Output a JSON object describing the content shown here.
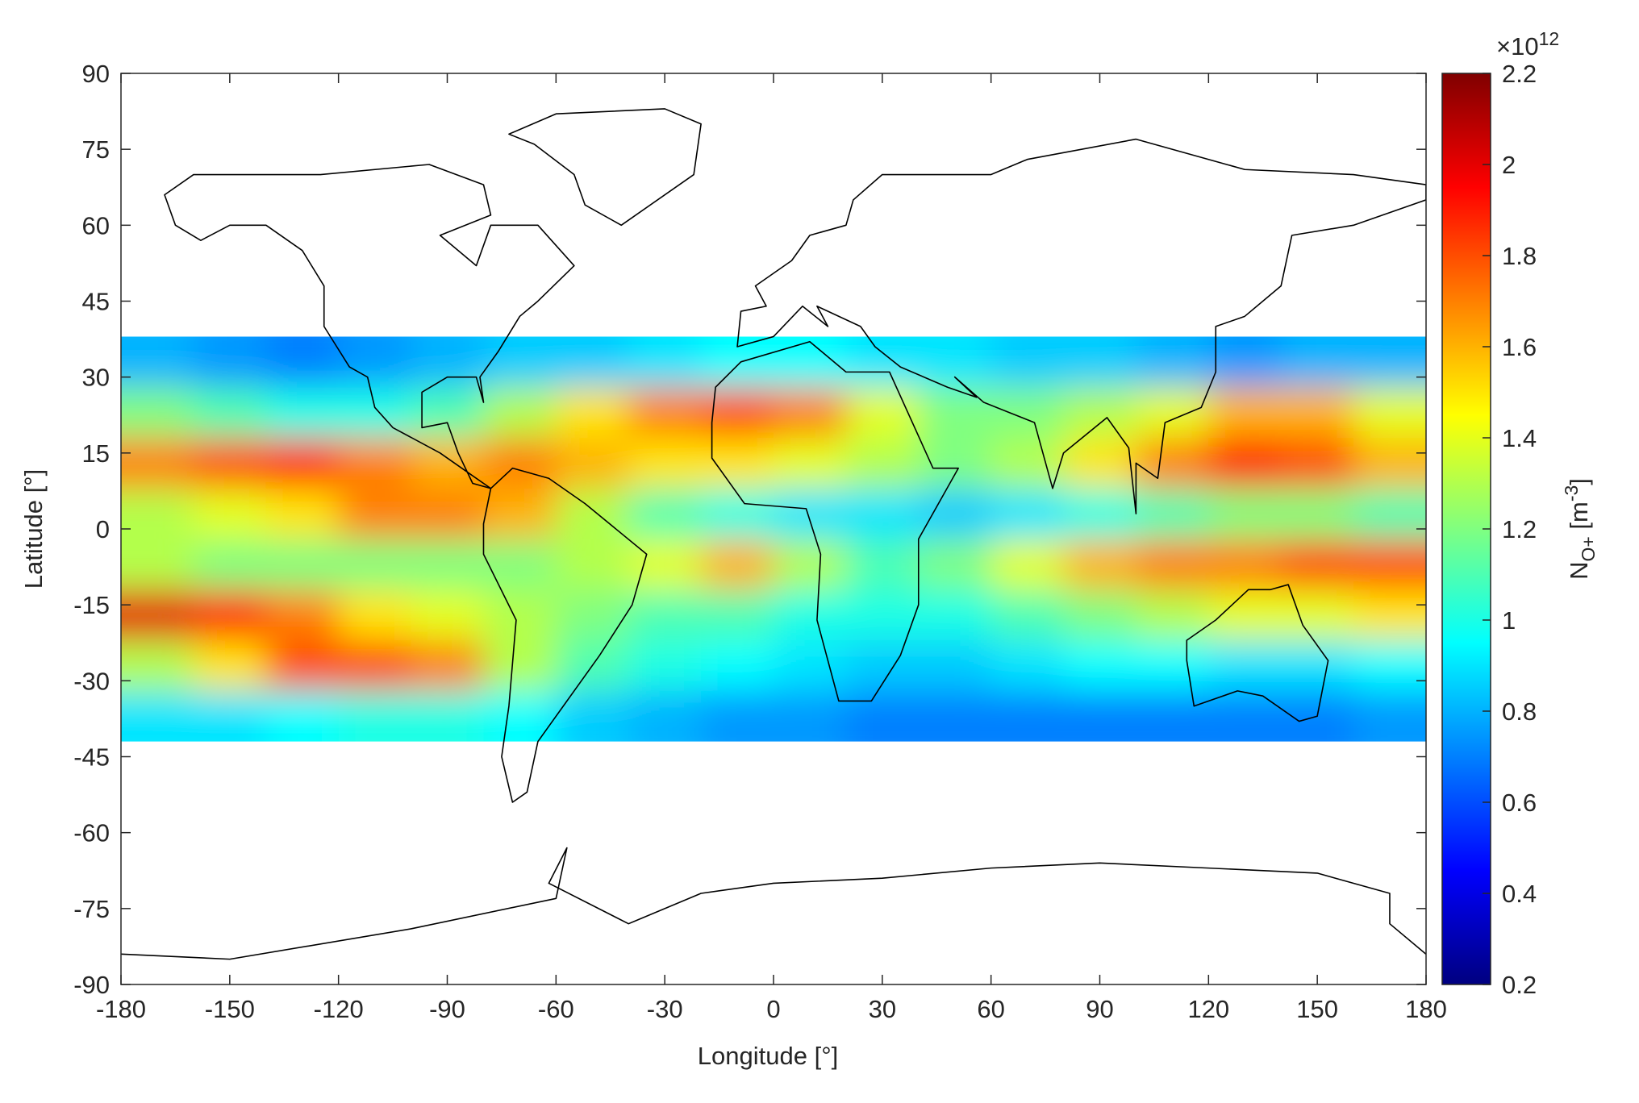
{
  "chart_data": {
    "type": "heatmap",
    "xlabel": "Longitude [°]",
    "ylabel": "Latitude [°]",
    "xlim": [
      -180,
      180
    ],
    "ylim": [
      -90,
      90
    ],
    "xticks": [
      -180,
      -150,
      -120,
      -90,
      -60,
      -30,
      0,
      30,
      60,
      90,
      120,
      150,
      180
    ],
    "yticks": [
      -90,
      -75,
      -60,
      -45,
      -30,
      -15,
      0,
      15,
      30,
      45,
      60,
      75,
      90
    ],
    "x": [
      -170,
      -150,
      -130,
      -110,
      -90,
      -70,
      -50,
      -30,
      -10,
      10,
      30,
      50,
      70,
      90,
      110,
      130,
      150,
      170
    ],
    "y": [
      33,
      23,
      13,
      3,
      -7,
      -17,
      -27,
      -37
    ],
    "z": [
      [
        0.8,
        0.75,
        0.7,
        0.75,
        0.8,
        0.85,
        0.85,
        0.9,
        0.95,
        0.95,
        0.9,
        0.9,
        0.85,
        0.85,
        0.8,
        0.75,
        0.8,
        0.8
      ],
      [
        1.2,
        1.1,
        1.0,
        1.0,
        1.1,
        1.3,
        1.5,
        1.7,
        1.8,
        1.7,
        1.4,
        1.2,
        1.2,
        1.3,
        1.4,
        1.6,
        1.6,
        1.4
      ],
      [
        1.7,
        1.8,
        1.9,
        1.7,
        1.6,
        1.7,
        1.6,
        1.5,
        1.5,
        1.4,
        1.3,
        1.2,
        1.3,
        1.5,
        1.7,
        1.9,
        1.8,
        1.6
      ],
      [
        1.3,
        1.4,
        1.5,
        1.7,
        1.7,
        1.6,
        1.3,
        1.1,
        1.0,
        0.9,
        0.9,
        0.85,
        0.9,
        1.0,
        1.1,
        1.2,
        1.2,
        1.1
      ],
      [
        1.3,
        1.2,
        1.2,
        1.2,
        1.2,
        1.2,
        1.3,
        1.4,
        1.6,
        1.3,
        1.1,
        1.2,
        1.4,
        1.6,
        1.7,
        1.7,
        1.8,
        1.8
      ],
      [
        2.0,
        1.9,
        1.7,
        1.5,
        1.4,
        1.3,
        1.2,
        1.1,
        1.1,
        1.0,
        1.0,
        1.0,
        1.1,
        1.2,
        1.3,
        1.4,
        1.4,
        1.5
      ],
      [
        1.3,
        1.5,
        1.8,
        1.8,
        1.7,
        1.3,
        1.1,
        1.0,
        0.95,
        0.9,
        0.85,
        0.85,
        0.9,
        0.95,
        0.95,
        0.9,
        0.9,
        0.95
      ],
      [
        0.9,
        0.9,
        0.95,
        1.0,
        1.0,
        0.95,
        0.85,
        0.8,
        0.75,
        0.75,
        0.7,
        0.7,
        0.7,
        0.7,
        0.7,
        0.7,
        0.7,
        0.75
      ]
    ],
    "colormap": "jet",
    "clim": [
      0.2,
      2.2
    ],
    "cticks": [
      0.2,
      0.4,
      0.6,
      0.8,
      1,
      1.2,
      1.4,
      1.6,
      1.8,
      2,
      2.2
    ],
    "colorbar_exponent": {
      "base": "×10",
      "power": "12"
    },
    "colorbar_label": {
      "symbol": "N",
      "subscript": "O+",
      "unit": " [m",
      "unit_power": "-3",
      "unit_end": "]"
    }
  }
}
